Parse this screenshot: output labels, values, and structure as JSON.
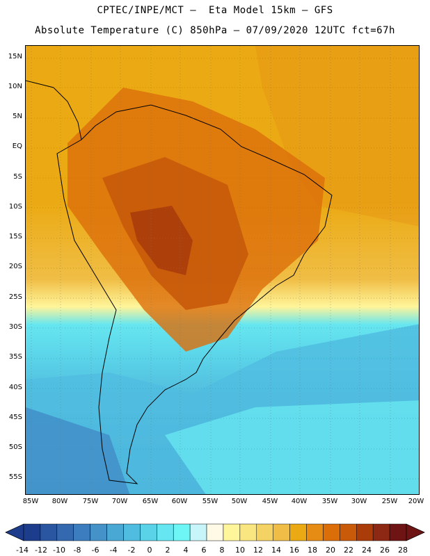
{
  "header": {
    "line1": "CPTEC/INPE/MCT –  Eta Model 15km – GFS",
    "line2": "Absolute Temperature (C) 850hPa – 07/09/2020 12UTC fct=67h"
  },
  "map": {
    "lat_labels": [
      "15N",
      "10N",
      "5N",
      "EQ",
      "5S",
      "10S",
      "15S",
      "20S",
      "25S",
      "30S",
      "35S",
      "40S",
      "45S",
      "50S",
      "55S"
    ],
    "lon_labels": [
      "85W",
      "80W",
      "75W",
      "70W",
      "65W",
      "60W",
      "55W",
      "50W",
      "45W",
      "40W",
      "35W",
      "30W",
      "25W",
      "20W"
    ]
  },
  "colorbar": {
    "labels": [
      "-14",
      "-12",
      "-10",
      "-8",
      "-6",
      "-4",
      "-2",
      "0",
      "2",
      "4",
      "6",
      "8",
      "10",
      "12",
      "14",
      "16",
      "18",
      "20",
      "22",
      "24",
      "26",
      "28"
    ],
    "colors": [
      "#1e3c8c",
      "#2a55a0",
      "#3469b0",
      "#3c7dbf",
      "#4492c8",
      "#4aa8d4",
      "#50bde0",
      "#5ad2e8",
      "#66e6f0",
      "#6ef5f5",
      "#c8f5fa",
      "#fffae6",
      "#fff59a",
      "#fae680",
      "#f5d264",
      "#f0be46",
      "#ebaa14",
      "#e68c14",
      "#dc6e0a",
      "#c85a0a",
      "#aa3c0a",
      "#8c2814",
      "#6e1414"
    ]
  }
}
